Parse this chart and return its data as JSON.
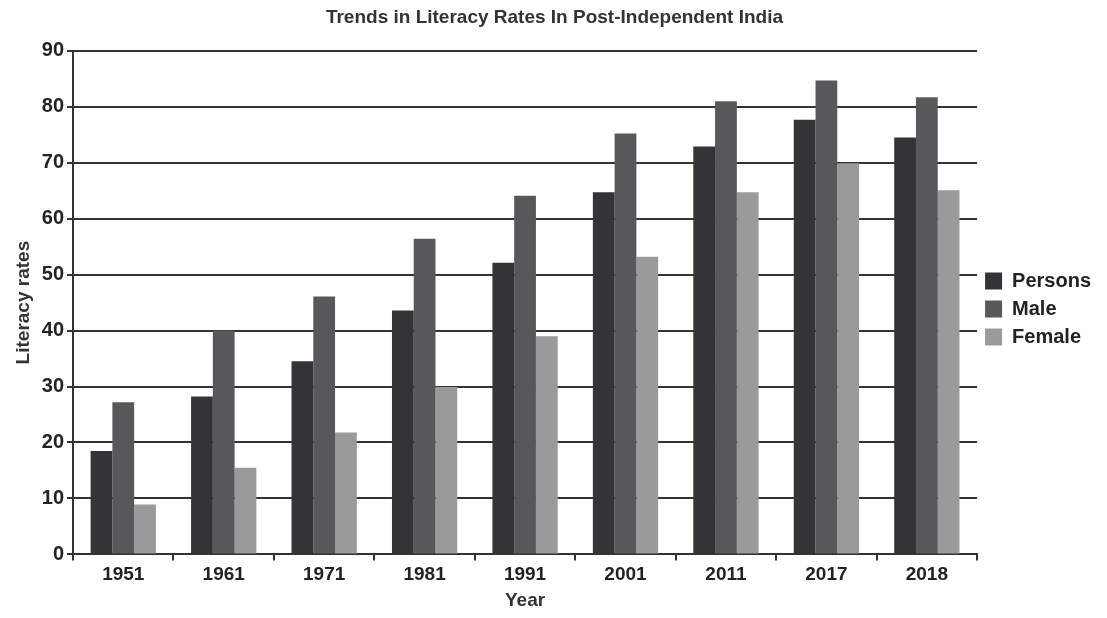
{
  "chart_data": {
    "type": "bar",
    "title": "Trends in Literacy Rates In Post-Independent India",
    "xlabel": "Year",
    "ylabel": "Literacy rates",
    "categories": [
      "1951",
      "1961",
      "1971",
      "1981",
      "1991",
      "2001",
      "2011",
      "2017",
      "2018"
    ],
    "series": [
      {
        "name": "Persons",
        "color": "#333438",
        "values": [
          18.5,
          28.2,
          34.5,
          43.6,
          52.1,
          64.7,
          72.9,
          77.7,
          74.5
        ]
      },
      {
        "name": "Male",
        "color": "#58585a",
        "values": [
          27.2,
          40.0,
          46.1,
          56.4,
          64.1,
          75.2,
          81.0,
          84.7,
          81.7
        ]
      },
      {
        "name": "Female",
        "color": "#9a9a9a",
        "values": [
          8.9,
          15.5,
          21.8,
          29.9,
          39.0,
          53.2,
          64.7,
          69.9,
          65.1
        ]
      }
    ],
    "ylim": [
      0,
      90
    ],
    "yticks": [
      0,
      10,
      20,
      30,
      40,
      50,
      60,
      70,
      80,
      90
    ],
    "grid": "y",
    "legend": "right"
  }
}
